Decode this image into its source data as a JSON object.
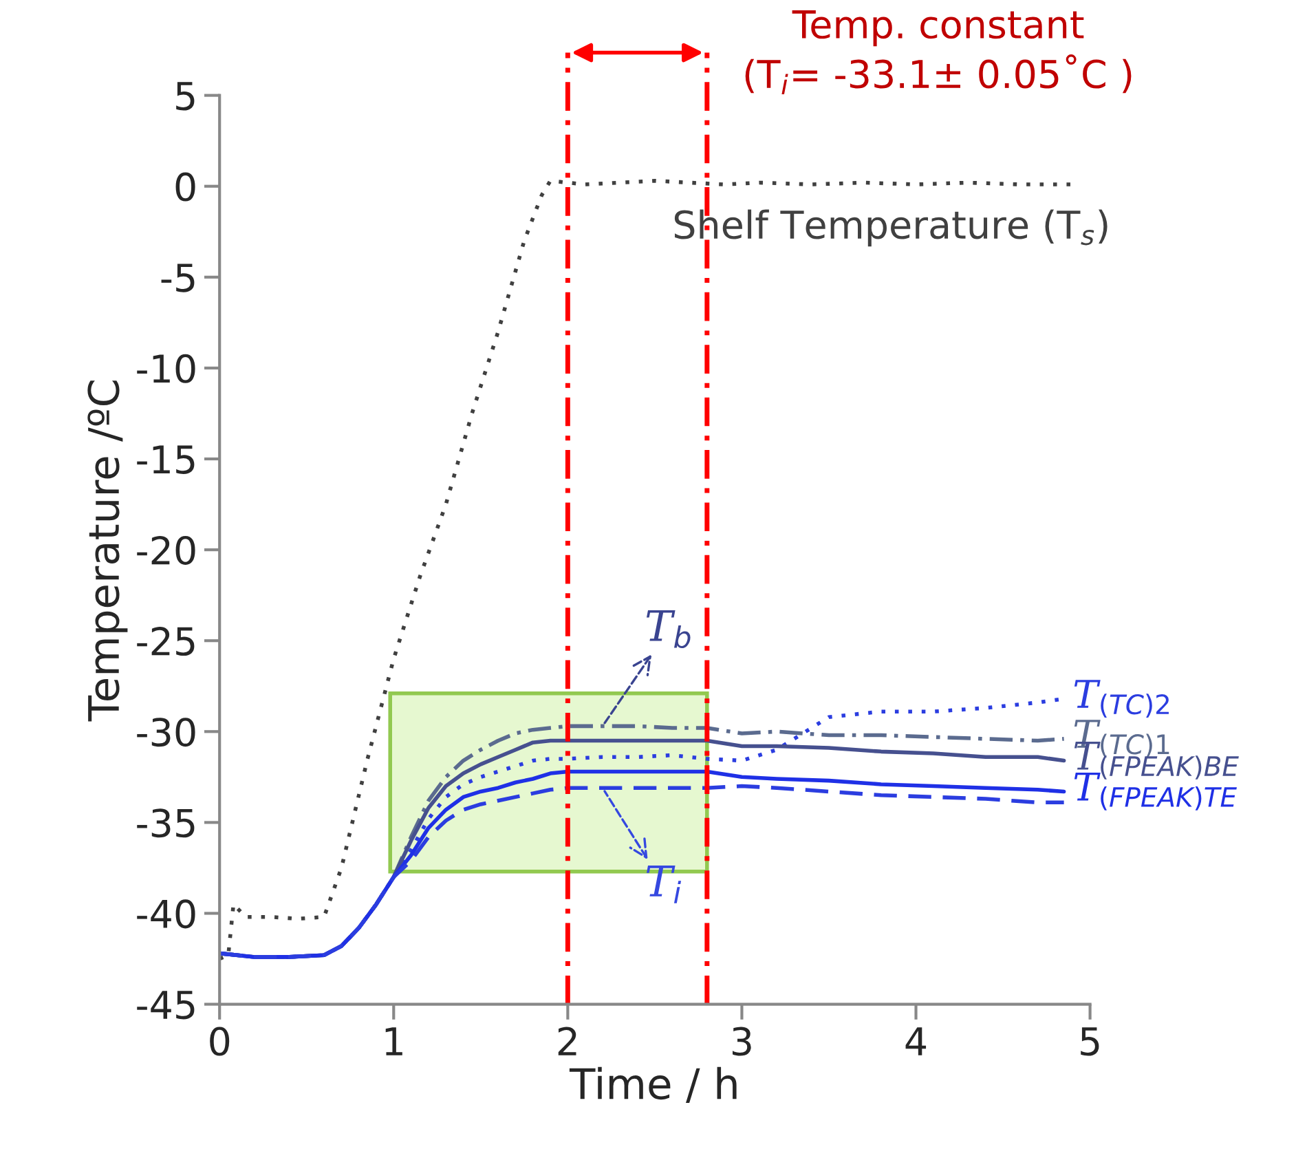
{
  "chart_data": {
    "type": "line",
    "xlabel": "Time / h",
    "ylabel": "Temperature /ºC",
    "xlim": [
      0,
      5
    ],
    "xticks": [
      0,
      1,
      2,
      3,
      4,
      5
    ],
    "ylim": [
      -45,
      5
    ],
    "yticks": [
      -45,
      -40,
      -35,
      -30,
      -25,
      -20,
      -15,
      -10,
      -5,
      0,
      5
    ],
    "grid": false,
    "legend": false,
    "series": [
      {
        "color": "#404040",
        "line_style": "dotted",
        "x": [
          0,
          0.05,
          0.08,
          0.15,
          0.3,
          0.45,
          0.6,
          0.7,
          0.85,
          1.0,
          1.15,
          1.3,
          1.45,
          1.6,
          1.75,
          1.85,
          1.9,
          2.1,
          2.3,
          2.5,
          2.7,
          2.9,
          3.1,
          3.4,
          3.7,
          4.0,
          4.3,
          4.6,
          4.9
        ],
        "values": [
          -42.5,
          -42.3,
          -39.5,
          -40.2,
          -40.2,
          -40.3,
          -40.2,
          -37.5,
          -31.5,
          -26,
          -21.5,
          -17.5,
          -12.5,
          -8,
          -3,
          -0.5,
          0.3,
          0.1,
          0.2,
          0.3,
          0.2,
          0.1,
          0.2,
          0.1,
          0.2,
          0.1,
          0.2,
          0.1,
          0.1
        ]
      },
      {
        "name": "T$_{(TC)2}$",
        "color": "#2b3de0",
        "line_style": "dotted",
        "x": [
          0,
          0.2,
          0.4,
          0.6,
          0.7,
          0.8,
          0.9,
          1.0,
          1.1,
          1.2,
          1.3,
          1.4,
          1.5,
          1.6,
          1.7,
          1.8,
          1.9,
          2.0,
          2.2,
          2.4,
          2.6,
          2.8,
          3.0,
          3.2,
          3.5,
          3.8,
          4.1,
          4.4,
          4.7,
          4.85
        ],
        "values": [
          -42.2,
          -42.4,
          -42.4,
          -42.3,
          -41.8,
          -40.8,
          -39.5,
          -38.0,
          -36.5,
          -34.8,
          -33.6,
          -32.9,
          -32.5,
          -32.2,
          -31.9,
          -31.6,
          -31.5,
          -31.5,
          -31.4,
          -31.4,
          -31.3,
          -31.5,
          -31.6,
          -31.0,
          -29.2,
          -28.9,
          -28.9,
          -28.7,
          -28.4,
          -28.2
        ]
      },
      {
        "name": "T$_{(TC)1}$",
        "color": "#5b6b8f",
        "line_style": "dashdot",
        "x": [
          0,
          0.2,
          0.4,
          0.6,
          0.7,
          0.8,
          0.9,
          1.0,
          1.1,
          1.2,
          1.3,
          1.4,
          1.5,
          1.6,
          1.7,
          1.8,
          1.9,
          2.0,
          2.2,
          2.4,
          2.6,
          2.8,
          3.0,
          3.2,
          3.5,
          3.8,
          4.1,
          4.4,
          4.7,
          4.85
        ],
        "values": [
          -42.2,
          -42.4,
          -42.4,
          -42.3,
          -41.8,
          -40.8,
          -39.5,
          -38.0,
          -35.8,
          -33.8,
          -32.5,
          -31.6,
          -31.0,
          -30.5,
          -30.1,
          -29.9,
          -29.8,
          -29.7,
          -29.7,
          -29.7,
          -29.8,
          -29.8,
          -30.1,
          -30.0,
          -30.2,
          -30.2,
          -30.3,
          -30.4,
          -30.5,
          -30.4
        ]
      },
      {
        "name": "T$_{(FPEAK)BE}$",
        "color": "#46508f",
        "line_style": "solid",
        "x": [
          0,
          0.2,
          0.4,
          0.6,
          0.7,
          0.8,
          0.9,
          1.0,
          1.1,
          1.2,
          1.3,
          1.4,
          1.5,
          1.6,
          1.7,
          1.8,
          1.9,
          2.0,
          2.2,
          2.4,
          2.6,
          2.8,
          3.0,
          3.2,
          3.5,
          3.8,
          4.1,
          4.4,
          4.7,
          4.85
        ],
        "values": [
          -42.2,
          -42.4,
          -42.4,
          -42.3,
          -41.8,
          -40.8,
          -39.5,
          -38.0,
          -36.0,
          -34.2,
          -33.0,
          -32.3,
          -31.8,
          -31.4,
          -31.0,
          -30.6,
          -30.5,
          -30.5,
          -30.5,
          -30.5,
          -30.5,
          -30.5,
          -30.8,
          -30.8,
          -30.9,
          -31.1,
          -31.2,
          -31.4,
          -31.4,
          -31.6
        ]
      },
      {
        "name": "T$_{(FPEAK)TE}$",
        "color": "#1f30e6",
        "line_style": "solid",
        "x": [
          0,
          0.2,
          0.4,
          0.6,
          0.7,
          0.8,
          0.9,
          1.0,
          1.1,
          1.2,
          1.3,
          1.4,
          1.5,
          1.6,
          1.7,
          1.8,
          1.9,
          2.0,
          2.2,
          2.4,
          2.6,
          2.8,
          3.0,
          3.2,
          3.5,
          3.8,
          4.1,
          4.4,
          4.7,
          4.85
        ],
        "values": [
          -42.2,
          -42.4,
          -42.4,
          -42.3,
          -41.8,
          -40.8,
          -39.5,
          -38.0,
          -36.8,
          -35.3,
          -34.3,
          -33.6,
          -33.3,
          -33.1,
          -32.8,
          -32.6,
          -32.3,
          -32.2,
          -32.2,
          -32.2,
          -32.2,
          -32.2,
          -32.5,
          -32.6,
          -32.7,
          -32.9,
          -33.0,
          -33.1,
          -33.2,
          -33.3
        ]
      },
      {
        "color": "#2b3de0",
        "line_style": "dashed",
        "x": [
          0,
          0.2,
          0.4,
          0.6,
          0.7,
          0.8,
          0.9,
          1.0,
          1.1,
          1.2,
          1.3,
          1.4,
          1.5,
          1.6,
          1.7,
          1.8,
          1.9,
          2.0,
          2.2,
          2.4,
          2.6,
          2.8,
          3.0,
          3.2,
          3.5,
          3.8,
          4.1,
          4.4,
          4.7,
          4.85
        ],
        "values": [
          -42.2,
          -42.4,
          -42.4,
          -42.3,
          -41.8,
          -40.8,
          -39.5,
          -38.0,
          -37.1,
          -35.8,
          -34.9,
          -34.3,
          -34.0,
          -33.8,
          -33.6,
          -33.4,
          -33.2,
          -33.1,
          -33.1,
          -33.1,
          -33.1,
          -33.1,
          -33.0,
          -33.1,
          -33.3,
          -33.5,
          -33.6,
          -33.7,
          -33.9,
          -33.9
        ]
      }
    ],
    "ref_lines": [
      {
        "axis": "x",
        "value": 2,
        "color": "#ff0000",
        "line_style": "dashdot"
      },
      {
        "axis": "x",
        "value": 2.8,
        "color": "#ff0000",
        "line_style": "dashdot"
      }
    ],
    "annotations": [
      "Temp. constant\n(T$_{i}$= -33.1± 0.05˚C )",
      "Shelf Temperature (T$_{s}$)",
      {
        "text": "T$_{b}$",
        "x": 2.2,
        "y": -29.7
      },
      {
        "text": "T$_{i}$",
        "x": 2.2,
        "y": -33.1
      }
    ]
  }
}
